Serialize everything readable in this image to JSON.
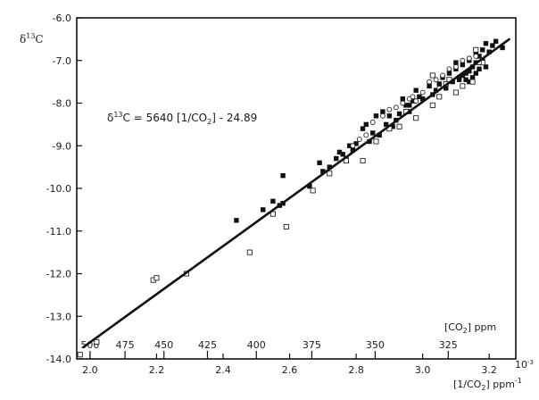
{
  "chart_data": {
    "type": "scatter",
    "title": "",
    "ylabel": "δ13C",
    "ylabel_main": "δ",
    "ylabel_sup": "13",
    "ylabel_tail": "C",
    "xlabel": "[1/CO2] ppm-1",
    "x_axis_label_text": "[1/CO",
    "x_axis_label_sub": "2",
    "x_axis_label_tail": "] ppm",
    "x_axis_label_sup": "-1",
    "x_scale_multiplier": "10-3",
    "x_scale_base": "10",
    "x_scale_exp": "-3",
    "xlim": [
      1.96,
      3.28
    ],
    "ylim": [
      -14.0,
      -6.0
    ],
    "x_ticks": [
      2.0,
      2.2,
      2.4,
      2.6,
      2.8,
      3.0,
      3.2
    ],
    "x_tick_labels": [
      "2.0",
      "2.2",
      "2.4",
      "2.6",
      "2.8",
      "3.0",
      "3.2"
    ],
    "y_ticks": [
      -14,
      -13,
      -12,
      -11,
      -10,
      -9,
      -8,
      -7,
      -6
    ],
    "y_tick_labels": [
      "-14.0",
      "-13.0",
      "-12.0",
      "-11.0",
      "-10.0",
      "-9.0",
      "-8.0",
      "-7.0",
      "-6.0"
    ],
    "secondary_x_axis": {
      "label_text": "[CO",
      "label_sub": "2",
      "label_tail": "] ppm",
      "ticks": [
        500,
        475,
        450,
        425,
        400,
        375,
        350,
        325
      ],
      "tick_labels": [
        "500",
        "475",
        "450",
        "425",
        "400",
        "375",
        "350",
        "325"
      ]
    },
    "annotation": {
      "delta": "δ",
      "sup": "13",
      "text_a": "C = 5640 [1/CO",
      "sub": "2",
      "text_b": "] - 24.89"
    },
    "fit_line": {
      "slope": 5640,
      "intercept": -24.89,
      "x_scale": 0.001,
      "x_range": [
        1.98,
        3.26
      ]
    },
    "grid": false,
    "legend": "none",
    "series": [
      {
        "marker": "filled-square",
        "points": [
          [
            2.44,
            -10.75
          ],
          [
            2.52,
            -10.5
          ],
          [
            2.55,
            -10.3
          ],
          [
            2.57,
            -10.4
          ],
          [
            2.58,
            -10.35
          ],
          [
            2.58,
            -9.7
          ],
          [
            2.66,
            -9.95
          ],
          [
            2.69,
            -9.4
          ],
          [
            2.7,
            -9.6
          ],
          [
            2.72,
            -9.5
          ],
          [
            2.74,
            -9.3
          ],
          [
            2.75,
            -9.15
          ],
          [
            2.76,
            -9.2
          ],
          [
            2.77,
            -9.3
          ],
          [
            2.78,
            -9.0
          ],
          [
            2.79,
            -9.1
          ],
          [
            2.8,
            -8.95
          ],
          [
            2.82,
            -8.6
          ],
          [
            2.83,
            -8.5
          ],
          [
            2.84,
            -8.9
          ],
          [
            2.85,
            -8.7
          ],
          [
            2.86,
            -8.3
          ],
          [
            2.87,
            -8.75
          ],
          [
            2.88,
            -8.2
          ],
          [
            2.89,
            -8.5
          ],
          [
            2.9,
            -8.3
          ],
          [
            2.92,
            -8.4
          ],
          [
            2.93,
            -8.25
          ],
          [
            2.94,
            -7.9
          ],
          [
            2.95,
            -8.05
          ],
          [
            2.96,
            -8.2
          ],
          [
            2.97,
            -7.95
          ],
          [
            2.98,
            -7.7
          ],
          [
            2.99,
            -7.85
          ],
          [
            3.0,
            -7.9
          ],
          [
            3.02,
            -7.6
          ],
          [
            3.03,
            -7.8
          ],
          [
            3.05,
            -7.55
          ],
          [
            3.06,
            -7.4
          ],
          [
            3.07,
            -7.65
          ],
          [
            3.08,
            -7.3
          ],
          [
            3.09,
            -7.5
          ],
          [
            3.1,
            -7.2
          ],
          [
            3.11,
            -7.4
          ],
          [
            3.12,
            -7.35
          ],
          [
            3.12,
            -7.1
          ],
          [
            3.13,
            -7.3
          ],
          [
            3.13,
            -7.45
          ],
          [
            3.14,
            -7.0
          ],
          [
            3.14,
            -7.25
          ],
          [
            3.15,
            -7.15
          ],
          [
            3.15,
            -7.4
          ],
          [
            3.16,
            -7.05
          ],
          [
            3.16,
            -7.3
          ],
          [
            3.17,
            -6.9
          ],
          [
            3.17,
            -7.2
          ],
          [
            3.18,
            -7.0
          ],
          [
            3.18,
            -6.75
          ],
          [
            3.19,
            -6.6
          ],
          [
            3.2,
            -6.8
          ],
          [
            3.21,
            -6.65
          ],
          [
            3.22,
            -6.55
          ],
          [
            3.24,
            -6.7
          ],
          [
            3.11,
            -7.45
          ],
          [
            3.1,
            -7.05
          ],
          [
            3.16,
            -6.85
          ],
          [
            3.19,
            -7.15
          ],
          [
            3.14,
            -7.5
          ],
          [
            3.08,
            -7.45
          ],
          [
            3.04,
            -7.7
          ],
          [
            2.96,
            -8.05
          ],
          [
            2.91,
            -8.55
          ]
        ]
      },
      {
        "marker": "open-square",
        "points": [
          [
            1.97,
            -13.9
          ],
          [
            2.02,
            -13.6
          ],
          [
            2.19,
            -12.15
          ],
          [
            2.2,
            -12.1
          ],
          [
            2.29,
            -12.0
          ],
          [
            2.48,
            -11.5
          ],
          [
            2.55,
            -10.6
          ],
          [
            2.59,
            -10.9
          ],
          [
            2.67,
            -10.05
          ],
          [
            2.72,
            -9.65
          ],
          [
            2.77,
            -9.35
          ],
          [
            2.82,
            -9.35
          ],
          [
            2.86,
            -8.9
          ],
          [
            2.9,
            -8.6
          ],
          [
            2.93,
            -8.55
          ],
          [
            2.95,
            -8.2
          ],
          [
            2.98,
            -8.35
          ],
          [
            3.03,
            -8.05
          ],
          [
            3.05,
            -7.85
          ],
          [
            3.07,
            -7.55
          ],
          [
            3.08,
            -7.45
          ],
          [
            3.1,
            -7.75
          ],
          [
            3.12,
            -7.6
          ],
          [
            3.15,
            -7.5
          ],
          [
            3.16,
            -6.75
          ],
          [
            3.18,
            -7.05
          ],
          [
            3.03,
            -7.35
          ]
        ]
      },
      {
        "marker": "open-circle",
        "points": [
          [
            2.79,
            -9.0
          ],
          [
            2.83,
            -8.75
          ],
          [
            2.85,
            -8.45
          ],
          [
            2.88,
            -8.3
          ],
          [
            2.9,
            -8.15
          ],
          [
            2.92,
            -8.1
          ],
          [
            2.94,
            -8.0
          ],
          [
            2.96,
            -7.9
          ],
          [
            2.98,
            -7.95
          ],
          [
            3.0,
            -7.75
          ],
          [
            3.02,
            -7.5
          ],
          [
            3.04,
            -7.45
          ],
          [
            3.06,
            -7.35
          ],
          [
            3.08,
            -7.2
          ],
          [
            3.1,
            -7.15
          ],
          [
            3.12,
            -7.0
          ],
          [
            3.14,
            -6.95
          ],
          [
            3.16,
            -6.9
          ],
          [
            3.17,
            -7.05
          ],
          [
            3.05,
            -7.65
          ],
          [
            2.97,
            -7.85
          ],
          [
            2.81,
            -8.85
          ]
        ]
      }
    ]
  }
}
